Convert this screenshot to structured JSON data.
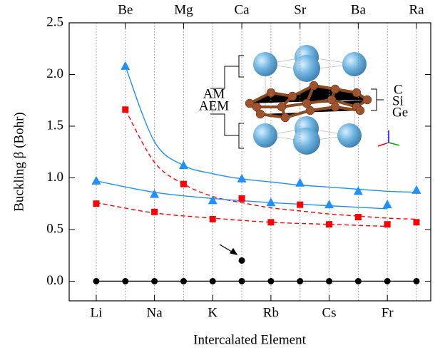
{
  "chart_data": {
    "type": "scatter",
    "xlabel": "Intercalated Element",
    "ylabel": "Buckling β (Bohr)",
    "categories": [
      "Li",
      "Be",
      "Na",
      "Mg",
      "K",
      "Ca",
      "Rb",
      "Sr",
      "Cs",
      "Ba",
      "Fr",
      "Ra"
    ],
    "xlim": [
      -0.93,
      11.49
    ],
    "ylim": [
      -0.19,
      2.5
    ],
    "yticks": [
      {
        "value": 0,
        "label": "0.0"
      },
      0.5,
      {
        "value": 1,
        "label": "1.0"
      },
      1.5,
      {
        "value": 2,
        "label": "2.0"
      },
      2.5
    ],
    "grid": true,
    "series": [
      {
        "color": "#1e90ff",
        "marker": "triangle",
        "values": [
          0.97,
          2.08,
          0.84,
          1.12,
          0.78,
          0.99,
          0.76,
          0.95,
          0.74,
          0.87,
          0.74,
          0.88
        ]
      },
      {
        "color": "#ff0000",
        "marker": "square",
        "values": [
          0.75,
          1.66,
          0.67,
          0.94,
          0.6,
          0.8,
          0.57,
          0.74,
          0.55,
          0.62,
          0.55,
          0.57
        ]
      },
      {
        "color": "#000000",
        "marker": "circle",
        "values": [
          0,
          0,
          0,
          0,
          0,
          0,
          0,
          0,
          0,
          0,
          0,
          0
        ]
      },
      {
        "color": "#000000",
        "marker": "circle",
        "x": [
          "Ca"
        ],
        "values": [
          0.2
        ]
      }
    ],
    "fits": [
      {
        "color": "#1e90ff",
        "dash": false,
        "x": [
          "Be",
          "Na",
          "Mg",
          "K",
          "Ca",
          "Rb",
          "Sr",
          "Cs",
          "Ba",
          "Fr",
          "Ra"
        ],
        "values": [
          2.08,
          1.35,
          1.12,
          1.04,
          0.99,
          0.96,
          0.93,
          0.91,
          0.89,
          0.87,
          0.86
        ]
      },
      {
        "color": "#ff0000",
        "dash": true,
        "x": [
          "Be",
          "Na",
          "Mg",
          "K",
          "Ca",
          "Rb",
          "Sr",
          "Cs",
          "Ba",
          "Fr",
          "Ra"
        ],
        "values": [
          1.66,
          1.15,
          0.94,
          0.82,
          0.76,
          0.71,
          0.68,
          0.65,
          0.63,
          0.61,
          0.6
        ]
      },
      {
        "color": "#1e90ff",
        "dash": false,
        "x": [
          "Li",
          "Na",
          "K",
          "Rb",
          "Cs",
          "Fr"
        ],
        "values": [
          0.97,
          0.86,
          0.8,
          0.76,
          0.73,
          0.7
        ]
      },
      {
        "color": "#ff0000",
        "dash": true,
        "x": [
          "Li",
          "Na",
          "K",
          "Rb",
          "Cs",
          "Fr"
        ],
        "values": [
          0.76,
          0.66,
          0.61,
          0.57,
          0.55,
          0.53
        ]
      },
      {
        "color": "#000000",
        "dash": false,
        "x": [
          "Li",
          "Ra"
        ],
        "values": [
          0,
          0
        ]
      }
    ],
    "annotations": {
      "left": [
        "AM",
        "AEM"
      ],
      "right": [
        "C",
        "Si",
        "Ge"
      ]
    }
  }
}
